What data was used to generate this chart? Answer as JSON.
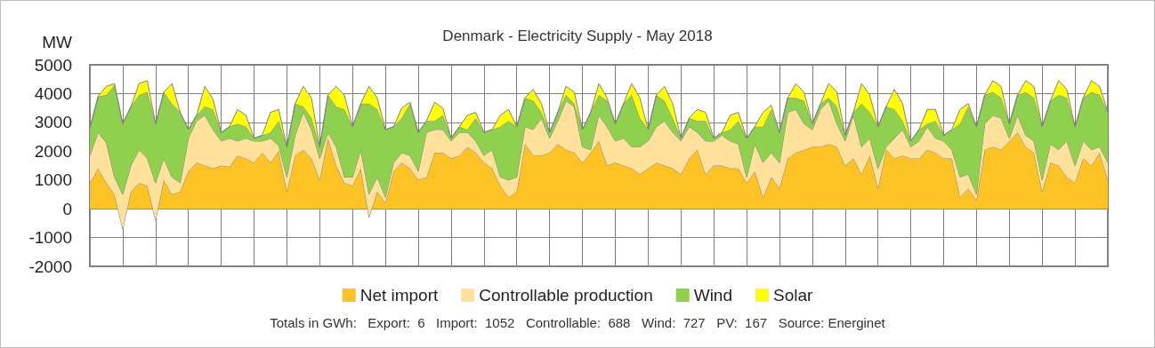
{
  "chart_data": {
    "type": "area",
    "stacked": true,
    "title": "Denmark - Electricity Supply - May 2018",
    "ylabel": "MW",
    "annotations": [
      "Totals in GWh:   Export:  6   Import:  1052   Controllable:  688   Wind:  727   PV:  167   Source: Energinet"
    ],
    "categories": [
      null,
      null,
      null,
      null,
      null,
      null,
      null,
      null,
      null,
      null,
      null,
      null,
      null,
      null,
      null,
      null,
      null,
      null,
      null,
      null,
      null,
      null,
      null,
      null,
      null,
      null,
      null,
      null,
      null,
      null,
      null,
      null,
      null,
      null,
      null,
      null,
      null,
      null,
      null,
      null,
      null,
      null,
      null,
      null,
      null,
      null,
      null,
      null,
      null,
      null,
      null,
      null,
      null,
      null,
      null,
      null,
      null,
      null,
      null,
      null,
      null,
      null,
      null,
      null,
      null,
      null,
      null,
      null,
      null,
      null,
      null,
      null,
      null,
      null,
      null,
      null,
      null,
      null,
      null,
      null,
      null,
      null,
      null,
      null,
      null,
      null,
      null,
      null,
      null,
      null,
      null,
      null,
      null,
      null,
      null,
      null,
      null,
      null,
      null,
      null,
      null,
      null,
      null,
      null,
      null,
      null,
      null,
      null,
      null,
      null,
      null,
      null,
      null,
      null,
      null,
      null,
      null,
      null,
      null,
      null,
      null,
      null,
      null,
      null,
      null
    ],
    "series": [
      {
        "name": "Net import",
        "color": "#fdc325",
        "values": [
          900,
          1400,
          900,
          500,
          -700,
          600,
          900,
          800,
          -400,
          1000,
          500,
          600,
          1300,
          1600,
          1500,
          1400,
          1500,
          1450,
          1850,
          1750,
          1600,
          1950,
          1600,
          2000,
          600,
          1850,
          2050,
          1750,
          1000,
          2450,
          1500,
          900,
          800,
          1400,
          -300,
          600,
          200,
          1300,
          1600,
          1400,
          1000,
          1100,
          1950,
          1950,
          1750,
          1850,
          2150,
          1950,
          1600,
          1400,
          800,
          400,
          600,
          2250,
          1850,
          1850,
          1950,
          2250,
          2050,
          1950,
          1600,
          1950,
          2350,
          1500,
          1600,
          1500,
          1400,
          1200,
          1400,
          1600,
          1500,
          1400,
          1200,
          1750,
          2050,
          1200,
          1500,
          1500,
          1400,
          1400,
          900,
          1300,
          400,
          1100,
          700,
          1750,
          1950,
          2050,
          2150,
          2150,
          2250,
          2150,
          1500,
          1750,
          1200,
          1850,
          700,
          2050,
          1750,
          1850,
          1750,
          1750,
          2050,
          1950,
          1750,
          1750,
          400,
          700,
          300,
          2050,
          2150,
          2050,
          2350,
          2650,
          2150,
          1950,
          600,
          1600,
          1500,
          1100,
          900,
          1750,
          1500,
          1950,
          1000
        ]
      },
      {
        "name": "Controllable production",
        "color": "#ffe19b",
        "values": [
          950,
          1250,
          1400,
          600,
          1200,
          900,
          1150,
          950,
          1300,
          750,
          600,
          300,
          1150,
          1450,
          1750,
          1350,
          850,
          1000,
          500,
          700,
          750,
          400,
          850,
          200,
          500,
          700,
          1300,
          1000,
          750,
          200,
          650,
          200,
          300,
          650,
          800,
          500,
          200,
          300,
          350,
          450,
          300,
          1550,
          800,
          800,
          600,
          800,
          500,
          400,
          250,
          650,
          300,
          600,
          500,
          600,
          900,
          1300,
          500,
          800,
          1700,
          1600,
          550,
          100,
          900,
          1350,
          750,
          950,
          750,
          950,
          950,
          1250,
          1550,
          1250,
          1150,
          1100,
          600,
          1150,
          850,
          1050,
          950,
          850,
          200,
          950,
          1200,
          850,
          900,
          1600,
          1500,
          900,
          600,
          1300,
          1500,
          800,
          850,
          1500,
          950,
          600,
          700,
          100,
          700,
          900,
          400,
          600,
          800,
          500,
          600,
          300,
          700,
          500,
          200,
          900,
          1100,
          1100,
          100,
          600,
          400,
          400,
          400,
          650,
          550,
          1250,
          600,
          600,
          550,
          200,
          600
        ]
      },
      {
        "name": "Wind",
        "color": "#8fd14f",
        "values": [
          950,
          1250,
          1650,
          3200,
          2450,
          2050,
          1900,
          2300,
          2050,
          2300,
          2550,
          2450,
          300,
          200,
          300,
          700,
          300,
          400,
          600,
          400,
          100,
          200,
          200,
          850,
          1050,
          1100,
          200,
          400,
          400,
          1300,
          1400,
          2350,
          1750,
          1600,
          3150,
          2350,
          2350,
          1250,
          1200,
          1800,
          1350,
          400,
          300,
          500,
          100,
          200,
          100,
          800,
          800,
          700,
          1750,
          2050,
          1750,
          1000,
          1000,
          200,
          200,
          300,
          200,
          100,
          600,
          1300,
          700,
          900,
          600,
          1200,
          1800,
          1000,
          400,
          1100,
          700,
          500,
          100,
          300,
          400,
          700,
          100,
          100,
          400,
          800,
          1350,
          600,
          1250,
          1500,
          1050,
          500,
          400,
          800,
          200,
          200,
          100,
          600,
          200,
          100,
          1500,
          900,
          1450,
          1400,
          1000,
          300,
          200,
          400,
          100,
          600,
          200,
          700,
          1850,
          2350,
          2350,
          1000,
          800,
          700,
          500,
          700,
          1500,
          1500,
          1850,
          1500,
          1900,
          1500,
          1350,
          1500,
          2000,
          1800,
          1750
        ]
      },
      {
        "name": "Solar",
        "color": "#ffff00",
        "values": [
          0,
          0,
          300,
          50,
          0,
          0,
          400,
          400,
          0,
          0,
          700,
          0,
          0,
          0,
          700,
          350,
          0,
          0,
          500,
          400,
          0,
          0,
          700,
          400,
          0,
          0,
          700,
          700,
          0,
          0,
          700,
          500,
          0,
          0,
          600,
          400,
          0,
          0,
          350,
          50,
          0,
          0,
          650,
          250,
          0,
          0,
          500,
          200,
          0,
          0,
          400,
          400,
          0,
          0,
          400,
          300,
          0,
          0,
          300,
          400,
          0,
          0,
          400,
          100,
          0,
          0,
          400,
          700,
          0,
          0,
          500,
          500,
          0,
          0,
          400,
          300,
          0,
          0,
          500,
          300,
          0,
          0,
          500,
          150,
          0,
          0,
          500,
          300,
          0,
          0,
          500,
          500,
          0,
          0,
          700,
          600,
          0,
          0,
          700,
          600,
          0,
          0,
          500,
          400,
          0,
          0,
          500,
          100,
          0,
          0,
          400,
          400,
          0,
          0,
          400,
          400,
          0,
          0,
          500,
          300,
          0,
          0,
          400,
          300,
          0
        ]
      }
    ],
    "ylim": [
      -2000,
      5000
    ],
    "yticks": [
      -2000,
      -1000,
      0,
      1000,
      2000,
      3000,
      4000,
      5000
    ],
    "grid": true,
    "legend": "bottom",
    "marker": "none"
  }
}
